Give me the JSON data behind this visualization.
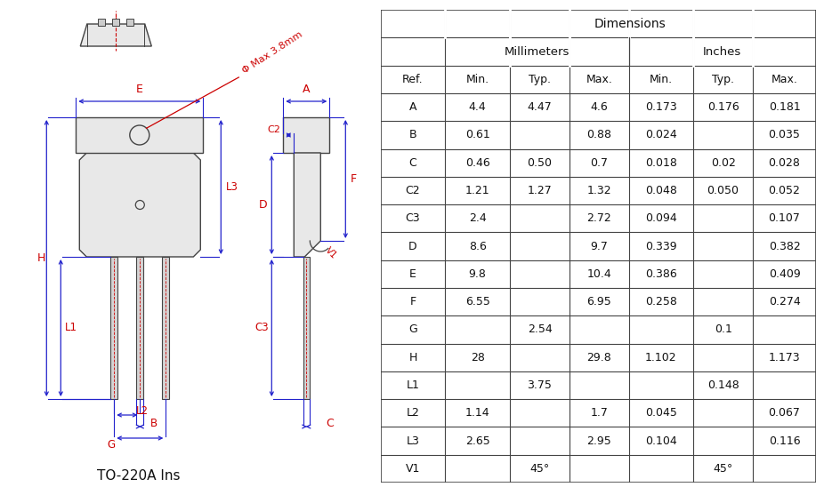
{
  "title": "TO-220A Ins",
  "table_data": [
    [
      "A",
      "4.4",
      "4.47",
      "4.6",
      "0.173",
      "0.176",
      "0.181"
    ],
    [
      "B",
      "0.61",
      "",
      "0.88",
      "0.024",
      "",
      "0.035"
    ],
    [
      "C",
      "0.46",
      "0.50",
      "0.7",
      "0.018",
      "0.02",
      "0.028"
    ],
    [
      "C2",
      "1.21",
      "1.27",
      "1.32",
      "0.048",
      "0.050",
      "0.052"
    ],
    [
      "C3",
      "2.4",
      "",
      "2.72",
      "0.094",
      "",
      "0.107"
    ],
    [
      "D",
      "8.6",
      "",
      "9.7",
      "0.339",
      "",
      "0.382"
    ],
    [
      "E",
      "9.8",
      "",
      "10.4",
      "0.386",
      "",
      "0.409"
    ],
    [
      "F",
      "6.55",
      "",
      "6.95",
      "0.258",
      "",
      "0.274"
    ],
    [
      "G",
      "",
      "2.54",
      "",
      "",
      "0.1",
      ""
    ],
    [
      "H",
      "28",
      "",
      "29.8",
      "1.102",
      "",
      "1.173"
    ],
    [
      "L1",
      "",
      "3.75",
      "",
      "",
      "0.148",
      ""
    ],
    [
      "L2",
      "1.14",
      "",
      "1.7",
      "0.045",
      "",
      "0.067"
    ],
    [
      "L3",
      "2.65",
      "",
      "2.95",
      "0.104",
      "",
      "0.116"
    ],
    [
      "V1",
      "",
      "45°",
      "",
      "",
      "45°",
      ""
    ]
  ],
  "rc": "#cc0000",
  "lc": "#2222cc",
  "ec": "#444444",
  "fc": "#e8e8e8",
  "tc": "#444444",
  "bg": "#ffffff"
}
